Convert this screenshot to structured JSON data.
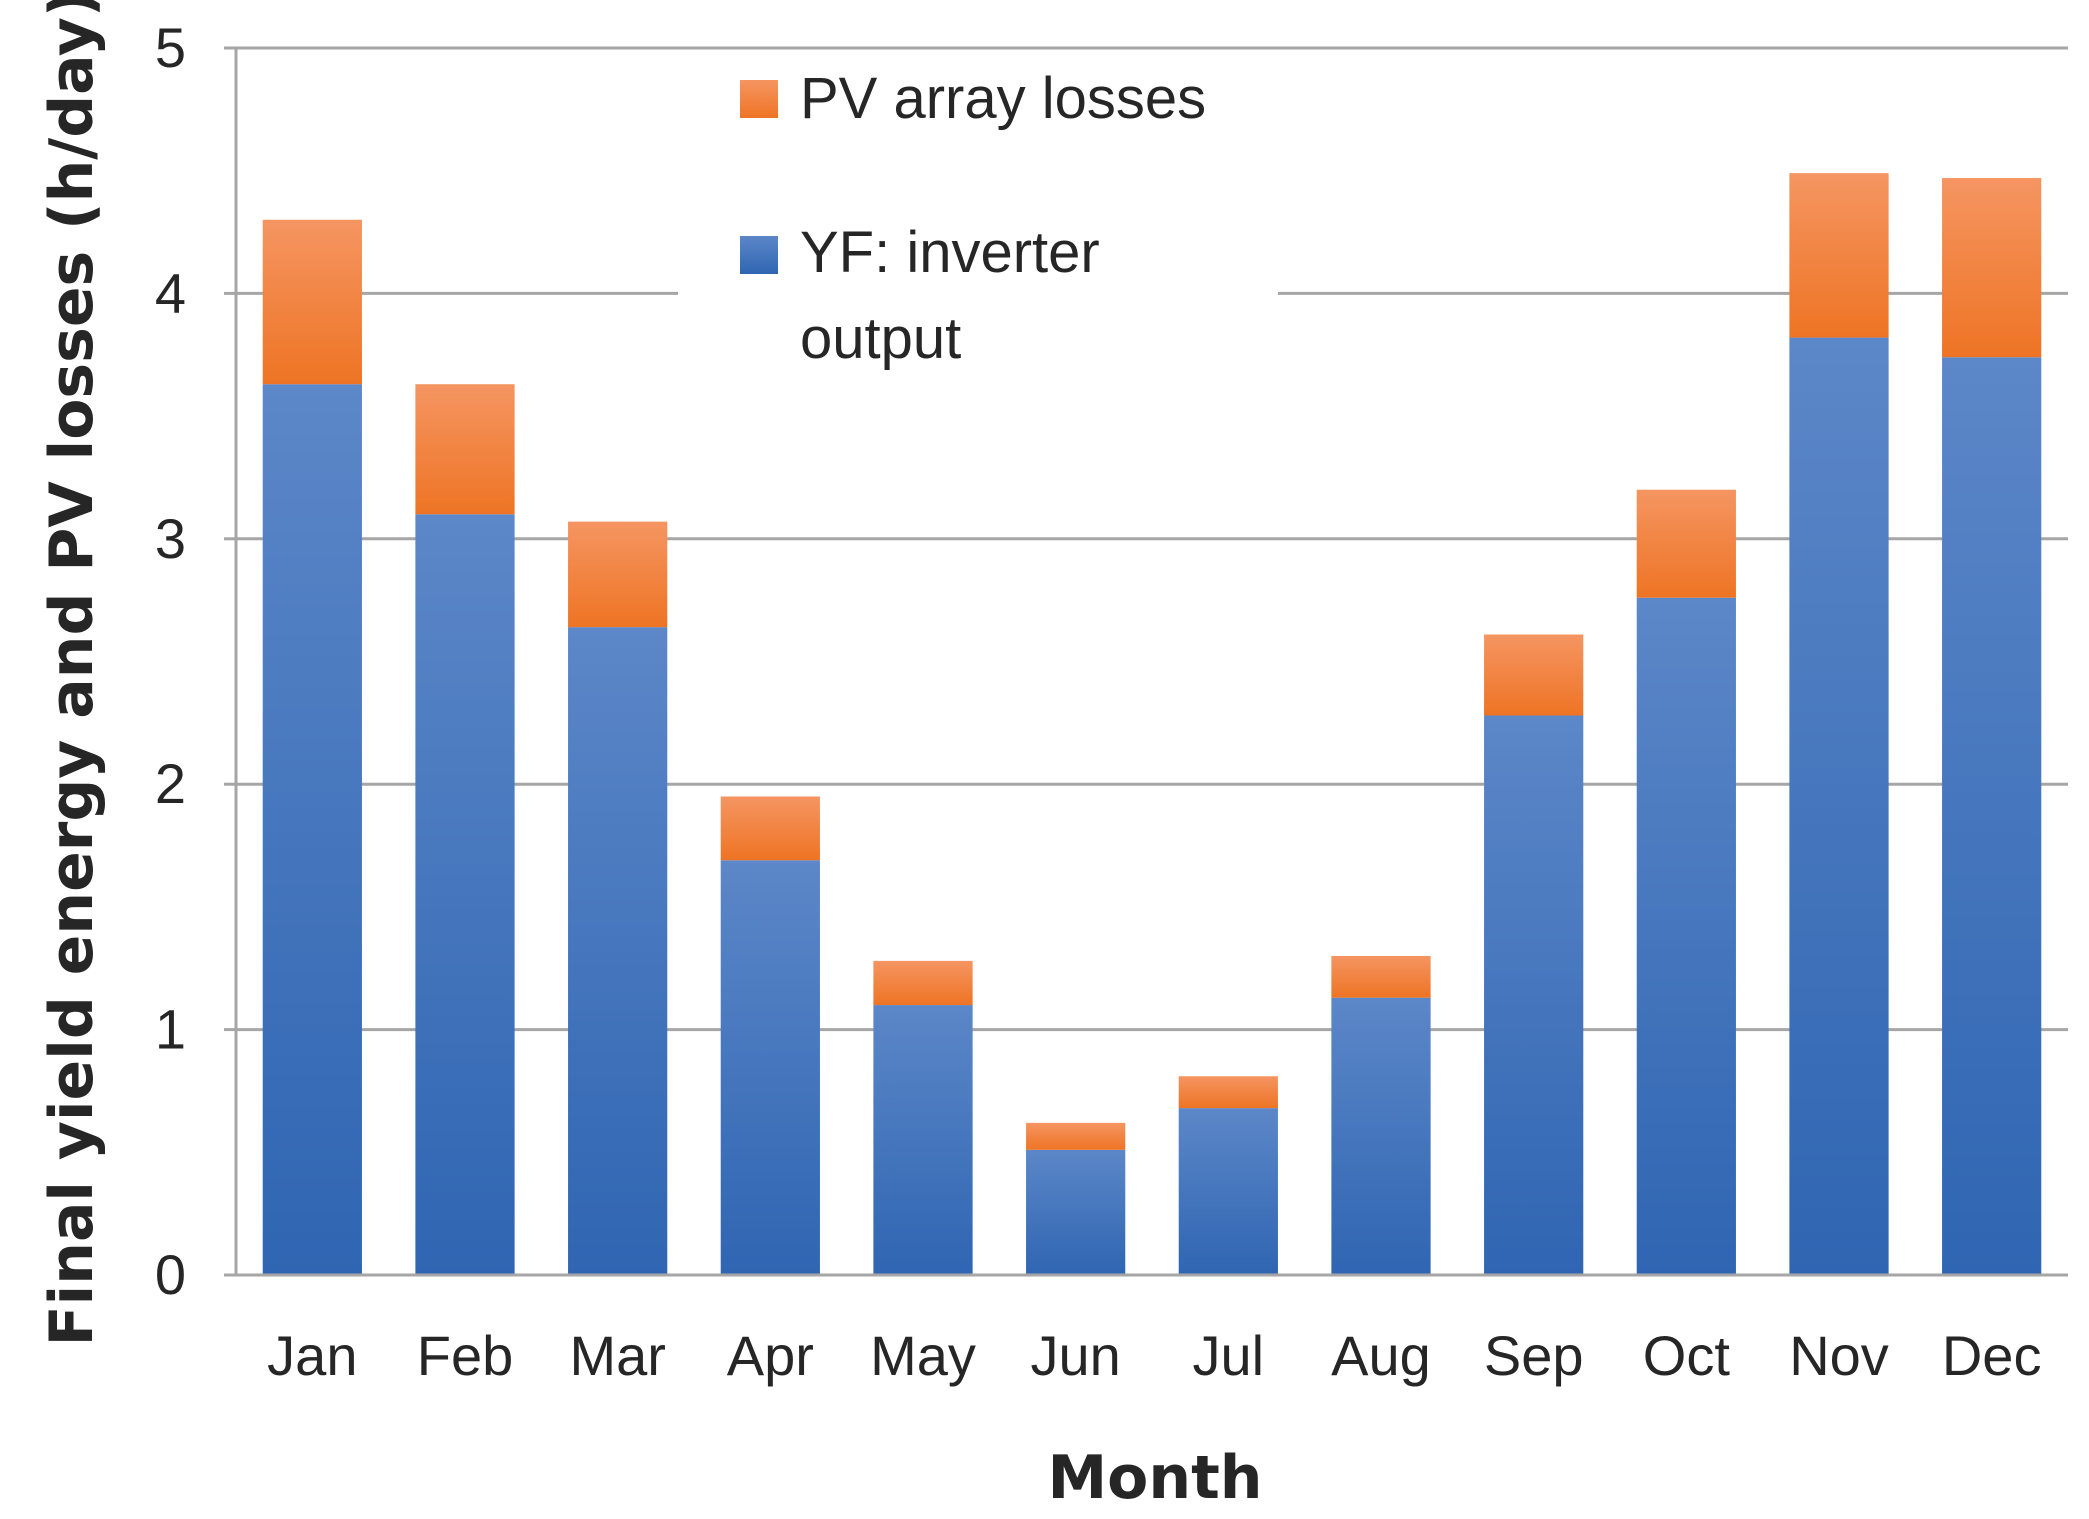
{
  "chart_data": {
    "type": "bar",
    "stacked": true,
    "categories": [
      "Jan",
      "Feb",
      "Mar",
      "Apr",
      "May",
      "Jun",
      "Jul",
      "Aug",
      "Sep",
      "Oct",
      "Nov",
      "Dec"
    ],
    "series": [
      {
        "name": "YF: inverter output",
        "legend_lines": [
          "YF: inverter",
          "output"
        ],
        "color": "#3A6DB5",
        "values": [
          3.63,
          3.1,
          2.64,
          1.69,
          1.1,
          0.51,
          0.68,
          1.13,
          2.28,
          2.76,
          3.82,
          3.74
        ]
      },
      {
        "name": "PV array losses",
        "legend_lines": [
          "PV array losses"
        ],
        "color": "#F07E30",
        "values": [
          0.67,
          0.53,
          0.43,
          0.26,
          0.18,
          0.11,
          0.13,
          0.17,
          0.33,
          0.44,
          0.67,
          0.73
        ]
      }
    ],
    "title": "",
    "xlabel": "Month",
    "ylabel": "Final yield energy and PV losses (h/day)",
    "ylim": [
      0,
      5
    ],
    "yticks": [
      0,
      1,
      2,
      3,
      4,
      5
    ],
    "grid": true,
    "legend_position": "top-center"
  }
}
